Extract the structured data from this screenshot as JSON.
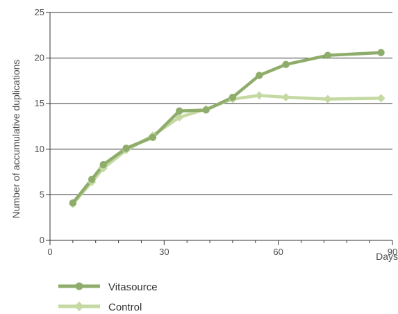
{
  "chart_data": {
    "type": "line",
    "title": "",
    "xlabel": "Days",
    "ylabel": "Number of accumulative duplications",
    "xlim": [
      0,
      90
    ],
    "ylim": [
      0,
      25
    ],
    "x_ticks": [
      0,
      30,
      60,
      90
    ],
    "y_ticks": [
      0,
      5,
      10,
      15,
      20,
      25
    ],
    "x_minor_ticks": [
      6,
      12,
      18,
      24,
      36,
      42,
      48,
      54,
      66,
      72,
      78,
      84
    ],
    "grid": "horizontal",
    "legend_position": "bottom-left",
    "series": [
      {
        "name": "Vitasource",
        "color": "#8fad6a",
        "marker": "circle",
        "points": [
          [
            6,
            4.1
          ],
          [
            11,
            6.7
          ],
          [
            14,
            8.3
          ],
          [
            20,
            10.1
          ],
          [
            27,
            11.3
          ],
          [
            34,
            14.2
          ],
          [
            41,
            14.3
          ],
          [
            48,
            15.7
          ],
          [
            55,
            18.1
          ],
          [
            62,
            19.3
          ],
          [
            73,
            20.3
          ],
          [
            87,
            20.6
          ]
        ]
      },
      {
        "name": "Control",
        "color": "#c5d9a3",
        "marker": "diamond",
        "points": [
          [
            6,
            4.0
          ],
          [
            11,
            6.4
          ],
          [
            14,
            7.9
          ],
          [
            20,
            9.9
          ],
          [
            27,
            11.5
          ],
          [
            34,
            13.5
          ],
          [
            41,
            14.4
          ],
          [
            48,
            15.5
          ],
          [
            55,
            15.9
          ],
          [
            62,
            15.7
          ],
          [
            73,
            15.5
          ],
          [
            87,
            15.6
          ]
        ]
      }
    ]
  }
}
